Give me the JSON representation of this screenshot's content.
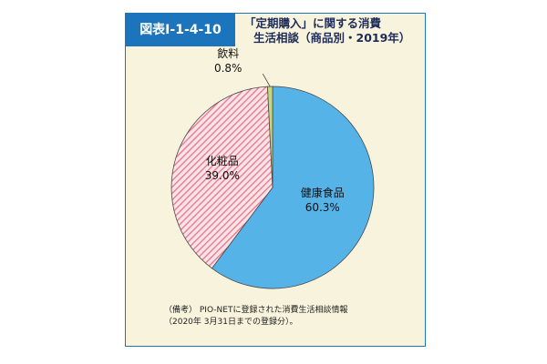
{
  "figure": {
    "label": "図表Ⅰ-1-4-10",
    "title_line1": "「定期購入」に関する消費",
    "title_line2": "生活相談（商品別・2019年）"
  },
  "colors": {
    "frame": "#1c75bc",
    "panel_bg": "#f8f3dc",
    "title_text": "#1c2b5a"
  },
  "chart_data": {
    "type": "pie",
    "unit": "%",
    "slices": [
      {
        "label": "健康食品",
        "value": 60.3,
        "value_text": "60.3%",
        "color": "#55b3e8",
        "pattern": "solid"
      },
      {
        "label": "化粧品",
        "value": 39.0,
        "value_text": "39.0%",
        "color": "#f08a9b",
        "pattern": "hatched"
      },
      {
        "label": "飲料",
        "value": 0.8,
        "value_text": "0.8%",
        "color": "#c7d87c",
        "pattern": "solid"
      }
    ]
  },
  "note": {
    "line1": "（備考） PIO-NETに登録された消費生活相談情報",
    "line2": "（2020年 3月31日までの登録分）。"
  }
}
